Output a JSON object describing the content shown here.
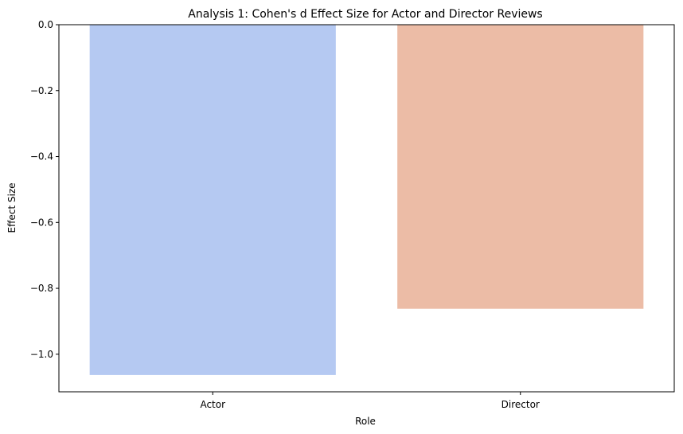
{
  "chart_data": {
    "type": "bar",
    "title": "Analysis 1: Cohen's d Effect Size for Actor and Director Reviews",
    "xlabel": "Role",
    "ylabel": "Effect Size",
    "categories": [
      "Actor",
      "Director"
    ],
    "values": [
      -1.063,
      -0.862
    ],
    "colors": [
      "#b5c9f2",
      "#ecbca6"
    ],
    "ylim": [
      -1.114,
      0.0
    ],
    "yticks": [
      0.0,
      -0.2,
      -0.4,
      -0.6,
      -0.8,
      -1.0
    ],
    "ytick_labels": [
      "0.0",
      "−0.2",
      "−0.4",
      "−0.6",
      "−0.8",
      "−1.0"
    ],
    "grid": false,
    "legend": "none"
  }
}
